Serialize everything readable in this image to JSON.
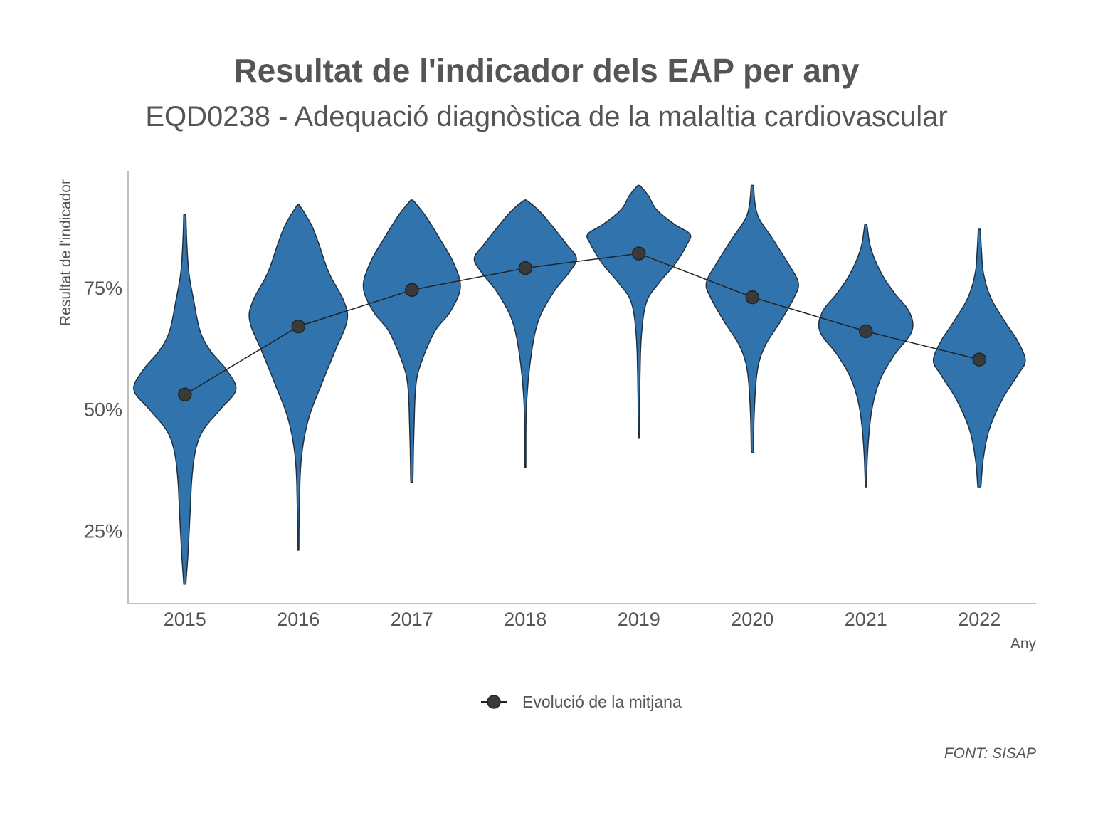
{
  "chart_data": {
    "type": "violin",
    "title": "Resultat de l'indicador dels EAP per any",
    "subtitle": "EQD0238 - Adequació diagnòstica de la malaltia cardiovascular",
    "xlabel": "Any",
    "ylabel": "Resultat de l'indicador",
    "ylim": [
      0.1,
      0.99
    ],
    "y_ticks": [
      0.25,
      0.5,
      0.75
    ],
    "y_tick_labels": [
      "25%",
      "50%",
      "75%"
    ],
    "categories": [
      "2015",
      "2016",
      "2017",
      "2018",
      "2019",
      "2020",
      "2021",
      "2022"
    ],
    "series": [
      {
        "name": "Evolució de la mitjana",
        "type": "line+points",
        "values": [
          0.53,
          0.67,
          0.745,
          0.79,
          0.82,
          0.73,
          0.66,
          0.602
        ]
      }
    ],
    "distributions": [
      {
        "year": "2015",
        "min": 0.14,
        "max": 0.9,
        "profile": [
          [
            0.14,
            0.02
          ],
          [
            0.2,
            0.06
          ],
          [
            0.28,
            0.1
          ],
          [
            0.36,
            0.14
          ],
          [
            0.42,
            0.22
          ],
          [
            0.46,
            0.38
          ],
          [
            0.5,
            0.7
          ],
          [
            0.54,
            1.0
          ],
          [
            0.58,
            0.82
          ],
          [
            0.62,
            0.5
          ],
          [
            0.66,
            0.3
          ],
          [
            0.72,
            0.18
          ],
          [
            0.78,
            0.08
          ],
          [
            0.84,
            0.04
          ],
          [
            0.9,
            0.02
          ]
        ]
      },
      {
        "year": "2016",
        "min": 0.21,
        "max": 0.92,
        "profile": [
          [
            0.21,
            0.01
          ],
          [
            0.3,
            0.02
          ],
          [
            0.4,
            0.06
          ],
          [
            0.48,
            0.2
          ],
          [
            0.55,
            0.45
          ],
          [
            0.62,
            0.72
          ],
          [
            0.68,
            0.95
          ],
          [
            0.72,
            0.9
          ],
          [
            0.78,
            0.6
          ],
          [
            0.84,
            0.4
          ],
          [
            0.88,
            0.25
          ],
          [
            0.92,
            0.02
          ]
        ]
      },
      {
        "year": "2017",
        "min": 0.35,
        "max": 0.93,
        "profile": [
          [
            0.35,
            0.02
          ],
          [
            0.45,
            0.04
          ],
          [
            0.55,
            0.08
          ],
          [
            0.6,
            0.2
          ],
          [
            0.66,
            0.45
          ],
          [
            0.7,
            0.75
          ],
          [
            0.75,
            0.95
          ],
          [
            0.8,
            0.82
          ],
          [
            0.85,
            0.55
          ],
          [
            0.9,
            0.25
          ],
          [
            0.93,
            0.02
          ]
        ]
      },
      {
        "year": "2018",
        "min": 0.38,
        "max": 0.93,
        "profile": [
          [
            0.38,
            0.01
          ],
          [
            0.5,
            0.02
          ],
          [
            0.6,
            0.1
          ],
          [
            0.68,
            0.25
          ],
          [
            0.74,
            0.55
          ],
          [
            0.78,
            0.85
          ],
          [
            0.81,
            1.0
          ],
          [
            0.84,
            0.8
          ],
          [
            0.88,
            0.5
          ],
          [
            0.91,
            0.25
          ],
          [
            0.93,
            0.02
          ]
        ]
      },
      {
        "year": "2019",
        "min": 0.44,
        "max": 0.96,
        "profile": [
          [
            0.44,
            0.01
          ],
          [
            0.55,
            0.02
          ],
          [
            0.65,
            0.05
          ],
          [
            0.72,
            0.15
          ],
          [
            0.76,
            0.4
          ],
          [
            0.8,
            0.72
          ],
          [
            0.84,
            0.95
          ],
          [
            0.86,
            1.0
          ],
          [
            0.88,
            0.7
          ],
          [
            0.91,
            0.35
          ],
          [
            0.94,
            0.18
          ],
          [
            0.96,
            0.02
          ]
        ]
      },
      {
        "year": "2020",
        "min": 0.41,
        "max": 0.96,
        "profile": [
          [
            0.41,
            0.02
          ],
          [
            0.5,
            0.04
          ],
          [
            0.58,
            0.1
          ],
          [
            0.63,
            0.25
          ],
          [
            0.68,
            0.55
          ],
          [
            0.73,
            0.82
          ],
          [
            0.76,
            0.9
          ],
          [
            0.8,
            0.7
          ],
          [
            0.85,
            0.4
          ],
          [
            0.9,
            0.1
          ],
          [
            0.96,
            0.02
          ]
        ]
      },
      {
        "year": "2021",
        "min": 0.34,
        "max": 0.88,
        "profile": [
          [
            0.34,
            0.01
          ],
          [
            0.42,
            0.04
          ],
          [
            0.5,
            0.12
          ],
          [
            0.56,
            0.28
          ],
          [
            0.61,
            0.55
          ],
          [
            0.66,
            0.9
          ],
          [
            0.7,
            0.85
          ],
          [
            0.74,
            0.55
          ],
          [
            0.78,
            0.3
          ],
          [
            0.83,
            0.1
          ],
          [
            0.88,
            0.02
          ]
        ]
      },
      {
        "year": "2022",
        "min": 0.34,
        "max": 0.87,
        "profile": [
          [
            0.34,
            0.03
          ],
          [
            0.4,
            0.08
          ],
          [
            0.46,
            0.2
          ],
          [
            0.52,
            0.45
          ],
          [
            0.57,
            0.75
          ],
          [
            0.6,
            0.9
          ],
          [
            0.64,
            0.75
          ],
          [
            0.68,
            0.5
          ],
          [
            0.73,
            0.22
          ],
          [
            0.78,
            0.08
          ],
          [
            0.83,
            0.04
          ],
          [
            0.87,
            0.02
          ]
        ]
      }
    ],
    "legend_position": "bottom",
    "grid": false,
    "violin_color": "#3174ad",
    "outline_color": "#1f2f3f",
    "line_color": "#222222",
    "point_color": "#3a3a3a",
    "caption": "FONT: SISAP"
  }
}
